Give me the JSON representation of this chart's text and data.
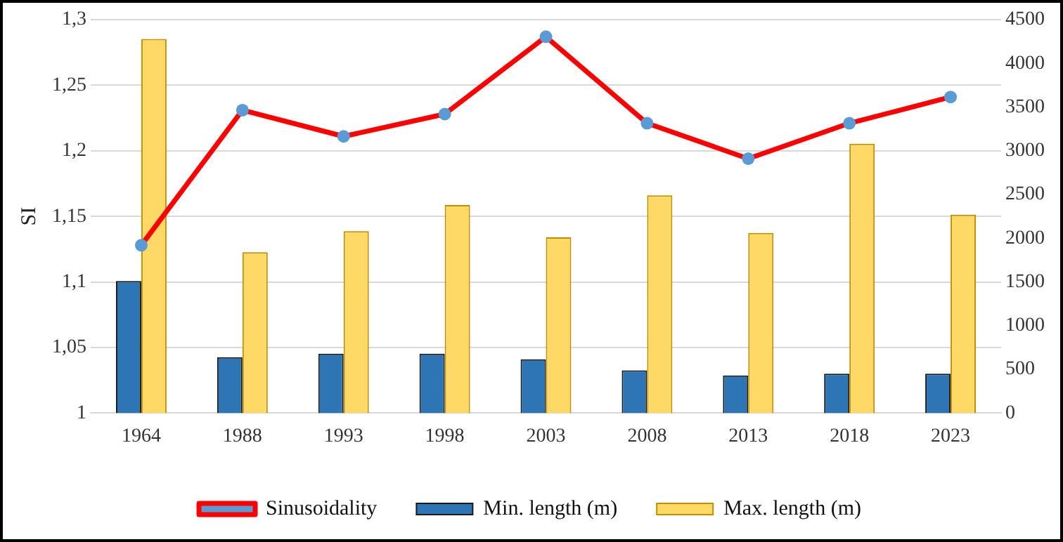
{
  "chart_data": {
    "type": "bar",
    "ylabel": "SI",
    "categories": [
      "1964",
      "1988",
      "1993",
      "1998",
      "2003",
      "2008",
      "2013",
      "2018",
      "2023"
    ],
    "series": [
      {
        "name": "Min. length (m)",
        "color": "#2e75b6",
        "axis": "y2",
        "values": [
          1510,
          640,
          680,
          680,
          615,
          490,
          430,
          450,
          450
        ]
      },
      {
        "name": "Max. length (m)",
        "color": "#ffd966",
        "axis": "y2",
        "values": [
          4280,
          1840,
          2080,
          2380,
          2010,
          2490,
          2060,
          3080,
          2270
        ]
      },
      {
        "name": "Sinusoidality",
        "type": "line",
        "color": "#ff0000",
        "marker": "circle",
        "axis": "y",
        "values": [
          1.128,
          1.231,
          1.211,
          1.228,
          1.287,
          1.221,
          1.194,
          1.221,
          1.241
        ]
      }
    ],
    "ylim": [
      1,
      1.3
    ],
    "yticks": [
      1,
      {
        "value": 1.05,
        "label": "1,05"
      },
      {
        "value": 1.1,
        "label": "1,1"
      },
      {
        "value": 1.15,
        "label": "1,15"
      },
      {
        "value": 1.2,
        "label": "1,2"
      },
      {
        "value": 1.25,
        "label": "1,25"
      },
      {
        "value": 1.3,
        "label": "1,3"
      }
    ],
    "y2lim": [
      0,
      4500
    ],
    "y2ticks": [
      0,
      500,
      1000,
      1500,
      2000,
      2500,
      3000,
      3500,
      4000,
      4500
    ],
    "grid": "y",
    "legend": "bottom"
  }
}
